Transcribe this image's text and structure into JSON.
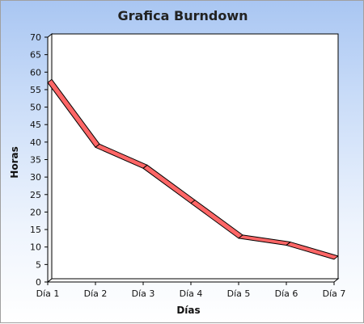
{
  "chart_data": {
    "type": "line",
    "title": "Grafica Burndown",
    "xlabel": "Días",
    "ylabel": "Horas",
    "categories": [
      "Día 1",
      "Día 2",
      "Día 3",
      "Día 4",
      "Día 5",
      "Día 6",
      "Día 7"
    ],
    "series": [
      {
        "values": [
          57,
          38.5,
          32.5,
          22.5,
          12.5,
          10.5,
          6.5
        ]
      }
    ],
    "ylim": [
      0,
      70
    ],
    "yticks": [
      0,
      5,
      10,
      15,
      20,
      25,
      30,
      35,
      40,
      45,
      50,
      55,
      60,
      65,
      70
    ],
    "grid": false,
    "legend": "none",
    "colors": {
      "line": "#ff6666",
      "line_edge": "#000000",
      "background_top": "#a9c6f2",
      "background_bottom": "#ffffff",
      "plot_wall": "#ffffff"
    }
  }
}
